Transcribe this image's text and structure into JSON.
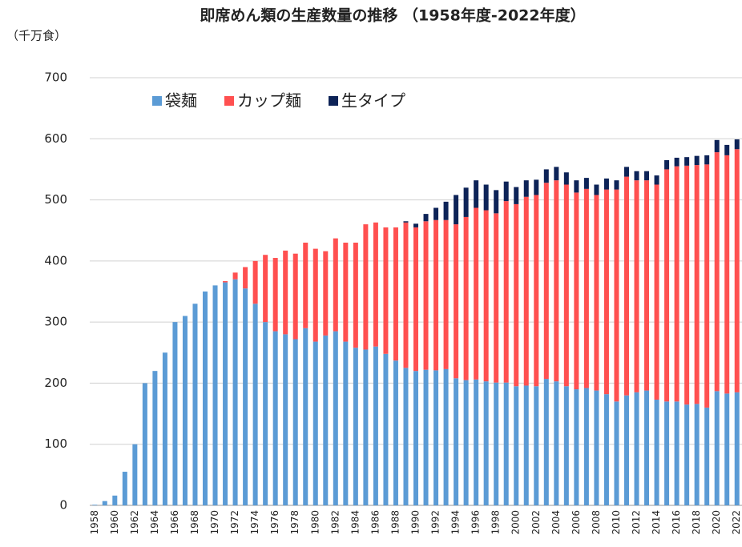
{
  "chart_data": {
    "type": "bar",
    "stacked": true,
    "title": "即席めん類の生産数量の推移 （1958年度-2022年度）",
    "y_label": "（千万食）",
    "categories": [
      "1958",
      null,
      "1960",
      null,
      "1962",
      null,
      "1964",
      null,
      "1966",
      null,
      "1968",
      null,
      "1970",
      null,
      "1972",
      null,
      "1974",
      null,
      "1976",
      null,
      "1978",
      null,
      "1980",
      null,
      "1982",
      null,
      "1984",
      null,
      "1986",
      null,
      "1988",
      null,
      "1990",
      null,
      "1992",
      null,
      "1994",
      null,
      "1996",
      null,
      "1998",
      null,
      "2000",
      null,
      "2002",
      null,
      "2004",
      null,
      "2006",
      null,
      "2008",
      null,
      "2010",
      null,
      "2012",
      null,
      "2014",
      null,
      "2016",
      null,
      "2018",
      null,
      "2020",
      null,
      "2022"
    ],
    "series": [
      {
        "name": "袋麺",
        "color": "#5b9bd5",
        "values": [
          1,
          7,
          16,
          55,
          100,
          200,
          220,
          250,
          300,
          310,
          330,
          350,
          360,
          365,
          370,
          355,
          330,
          300,
          285,
          280,
          272,
          290,
          268,
          278,
          285,
          268,
          258,
          255,
          260,
          248,
          237,
          225,
          220,
          222,
          221,
          223,
          208,
          205,
          206,
          203,
          201,
          201,
          195,
          196,
          195,
          207,
          203,
          195,
          190,
          192,
          188,
          182,
          170,
          180,
          185,
          188,
          173,
          170,
          170,
          165,
          166,
          160,
          187,
          183,
          185
        ]
      },
      {
        "name": "カップ麺",
        "color": "#ff5050",
        "values": [
          0,
          0,
          0,
          0,
          0,
          0,
          0,
          0,
          0,
          0,
          0,
          0,
          0,
          2,
          11,
          35,
          70,
          110,
          120,
          137,
          140,
          140,
          152,
          138,
          152,
          162,
          172,
          205,
          203,
          207,
          218,
          238,
          235,
          243,
          246,
          244,
          252,
          267,
          281,
          280,
          277,
          297,
          298,
          309,
          313,
          321,
          329,
          330,
          322,
          326,
          320,
          335,
          347,
          358,
          347,
          344,
          352,
          380,
          385,
          391,
          391,
          398,
          391,
          390,
          398
        ]
      },
      {
        "name": "生タイプ",
        "color": "#0d2357",
        "values": [
          0,
          0,
          0,
          0,
          0,
          0,
          0,
          0,
          0,
          0,
          0,
          0,
          0,
          0,
          0,
          0,
          0,
          0,
          0,
          0,
          0,
          0,
          0,
          0,
          0,
          0,
          0,
          0,
          0,
          0,
          0,
          2,
          6,
          12,
          20,
          30,
          48,
          48,
          45,
          42,
          38,
          32,
          28,
          27,
          25,
          22,
          22,
          20,
          20,
          18,
          17,
          18,
          15,
          16,
          15,
          15,
          15,
          15,
          14,
          14,
          15,
          15,
          20,
          17,
          16
        ]
      }
    ],
    "ylim": [
      0,
      700
    ],
    "yticks": [
      0,
      100,
      200,
      300,
      400,
      500,
      600,
      700
    ],
    "grid": true,
    "legend": "top-left"
  }
}
